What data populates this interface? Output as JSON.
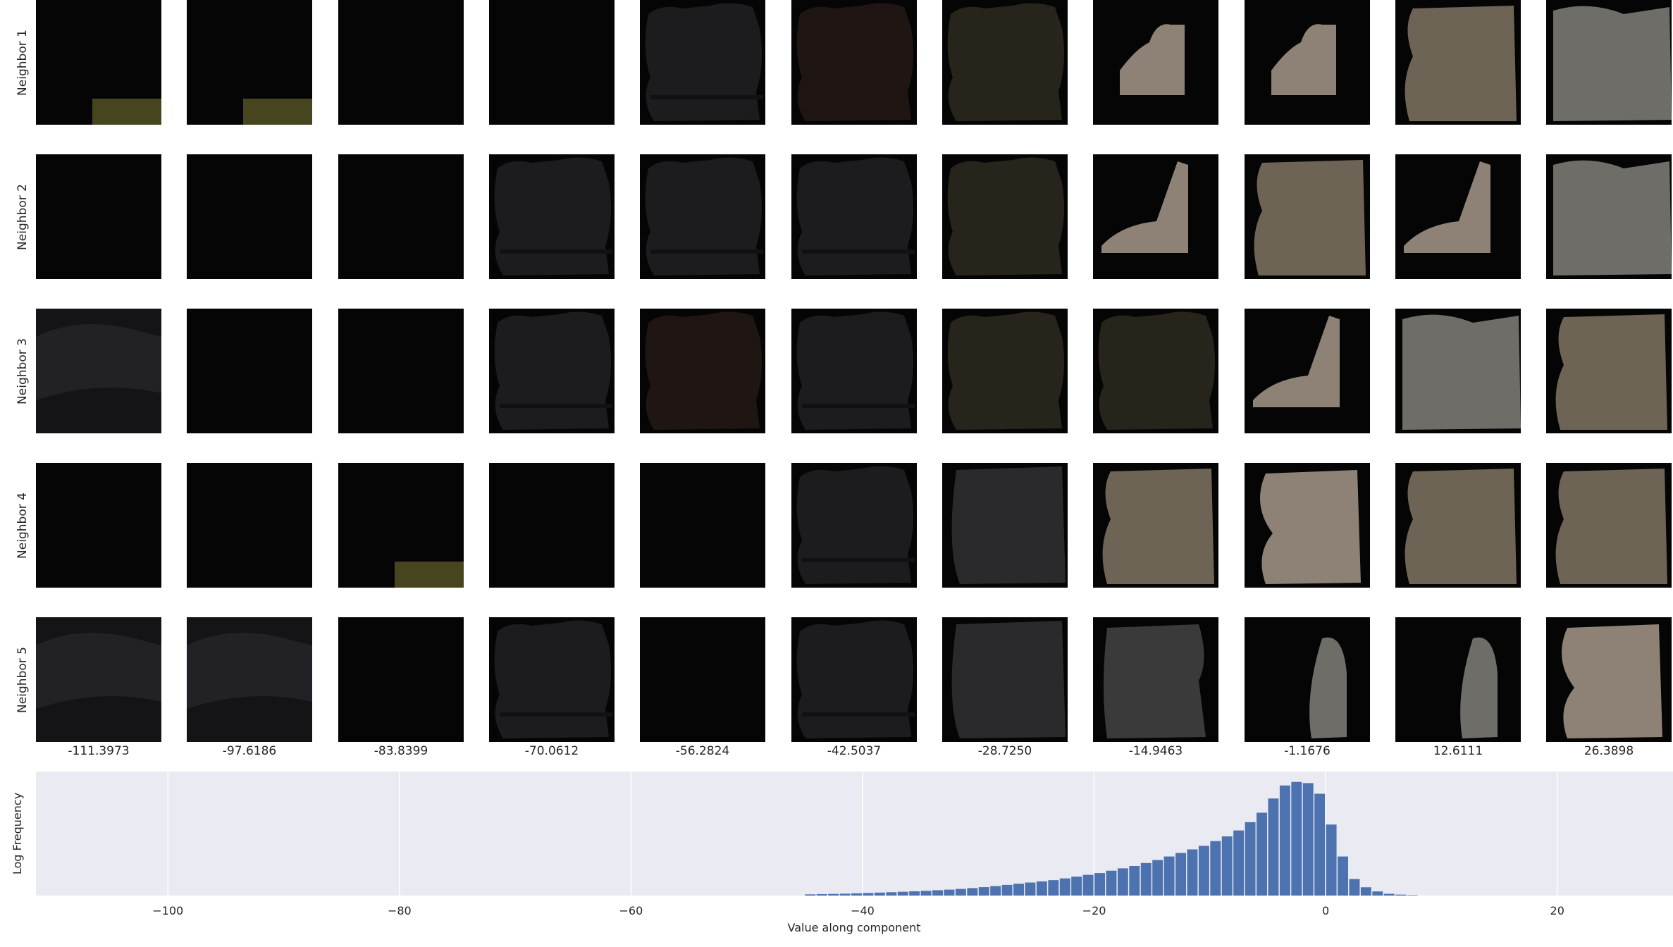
{
  "thumbnail_grid": {
    "row_labels": [
      "Neighbor 1",
      "Neighbor 2",
      "Neighbor 3",
      "Neighbor 4",
      "Neighbor 5"
    ],
    "column_values": [
      "-111.3973",
      "-97.6186",
      "-83.8399",
      "-70.0612",
      "-56.2824",
      "-42.5037",
      "-28.7250",
      "-14.9463",
      "-1.1676",
      "12.6111",
      "26.3898"
    ],
    "colors": {
      "near_black": "#050505",
      "dark_gray": "#1c1c1e",
      "dark_brown": "#1f1614",
      "olive_dark": "#27241c",
      "taupe": "#8d8275",
      "brown_gray": "#6e6455",
      "mid_gray": "#6f6d68",
      "yellow_texture": "#7c7a35"
    }
  },
  "chart_data": {
    "type": "bar",
    "xlabel": "Value along component",
    "ylabel": "Log Frequency",
    "xlim": [
      -111.3973,
      30
    ],
    "x_ticks": [
      "−100",
      "−80",
      "−60",
      "−40",
      "−20",
      "0",
      "20"
    ],
    "x_tick_values": [
      -100,
      -80,
      -60,
      -40,
      -20,
      0,
      20
    ],
    "ylim": [
      0,
      1
    ],
    "grid": true,
    "colors": {
      "bar": "#4c72b0",
      "background": "#eaeaf2",
      "grid": "#ffffff"
    },
    "bins": {
      "x": [
        -44.5,
        -43.5,
        -42.5,
        -41.5,
        -40.5,
        -39.5,
        -38.5,
        -37.5,
        -36.5,
        -35.5,
        -34.5,
        -33.5,
        -32.5,
        -31.5,
        -30.5,
        -29.5,
        -28.5,
        -27.5,
        -26.5,
        -25.5,
        -24.5,
        -23.5,
        -22.5,
        -21.5,
        -20.5,
        -19.5,
        -18.5,
        -17.5,
        -16.5,
        -15.5,
        -14.5,
        -13.5,
        -12.5,
        -11.5,
        -10.5,
        -9.5,
        -8.5,
        -7.5,
        -6.5,
        -5.5,
        -4.5,
        -3.5,
        -2.5,
        -1.5,
        -0.5,
        0.5,
        1.5,
        2.5,
        3.5,
        4.5,
        5.5,
        6.5,
        7.5
      ],
      "values": [
        0.01,
        0.012,
        0.014,
        0.016,
        0.019,
        0.022,
        0.025,
        0.028,
        0.032,
        0.036,
        0.04,
        0.045,
        0.05,
        0.056,
        0.063,
        0.071,
        0.08,
        0.09,
        0.1,
        0.11,
        0.12,
        0.13,
        0.145,
        0.16,
        0.175,
        0.19,
        0.21,
        0.23,
        0.25,
        0.275,
        0.3,
        0.33,
        0.36,
        0.39,
        0.42,
        0.46,
        0.5,
        0.55,
        0.62,
        0.7,
        0.82,
        0.93,
        0.96,
        0.95,
        0.86,
        0.6,
        0.33,
        0.14,
        0.07,
        0.035,
        0.015,
        0.008,
        0.004
      ]
    }
  }
}
